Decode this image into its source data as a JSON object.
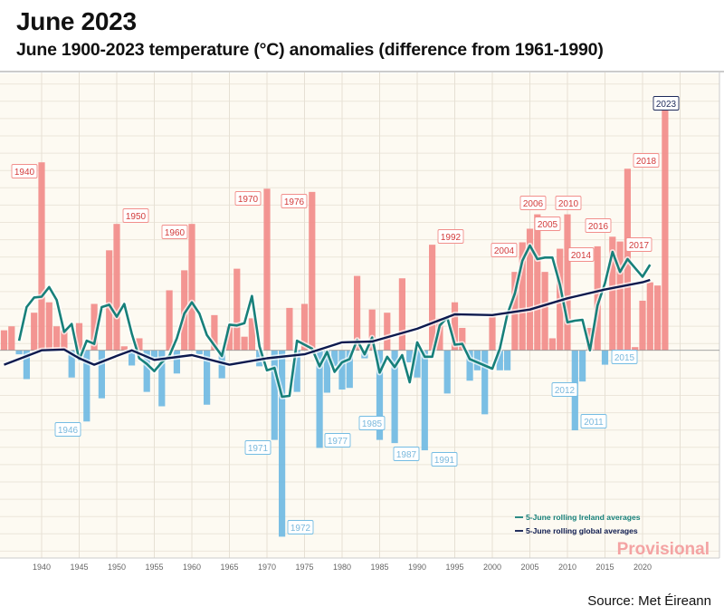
{
  "header": {
    "title": "June 2023",
    "subtitle": "June 1900-2023 temperature (°C) anomalies (difference from 1961-1990)"
  },
  "source": "Source: Met Éireann",
  "chart_data": {
    "type": "bar",
    "title": "June 2023",
    "subtitle": "June 1900-2023 temperature (°C) anomalies (difference from 1961-1990)",
    "xlabel": "",
    "ylabel": "",
    "xlim": [
      1934.5,
      2029.5
    ],
    "ylim": [
      -2.6,
      3.4
    ],
    "x_ticks": [
      "1940",
      "1945",
      "1950",
      "1955",
      "1960",
      "1965",
      "1970",
      "1975",
      "1980",
      "1985",
      "1990",
      "1995",
      "2000",
      "2005",
      "2010",
      "2015",
      "2020"
    ],
    "grid": true,
    "legend_position": "bottom-right",
    "colors": {
      "positive": "#f28f8c",
      "negative": "#74bce3",
      "ireland_line": "#17807a",
      "global_line": "#0d1a4e",
      "provisional": "#f4a3a3",
      "label_2023": "#1d2a5a"
    },
    "years": [
      1935,
      1936,
      1937,
      1938,
      1939,
      1940,
      1941,
      1942,
      1943,
      1944,
      1945,
      1946,
      1947,
      1948,
      1949,
      1950,
      1951,
      1952,
      1953,
      1954,
      1955,
      1956,
      1957,
      1958,
      1959,
      1960,
      1961,
      1962,
      1963,
      1964,
      1965,
      1966,
      1967,
      1968,
      1969,
      1970,
      1971,
      1972,
      1973,
      1974,
      1975,
      1976,
      1977,
      1978,
      1979,
      1980,
      1981,
      1982,
      1983,
      1984,
      1985,
      1986,
      1987,
      1988,
      1989,
      1990,
      1991,
      1992,
      1993,
      1994,
      1995,
      1996,
      1997,
      1998,
      1999,
      2000,
      2001,
      2002,
      2003,
      2004,
      2005,
      2006,
      2007,
      2008,
      2009,
      2010,
      2011,
      2012,
      2013,
      2014,
      2015,
      2016,
      2017,
      2018,
      2019,
      2020,
      2021,
      2022,
      2023
    ],
    "values": [
      0.25,
      0.3,
      -0.05,
      -0.36,
      0.47,
      2.35,
      0.6,
      0.3,
      0.25,
      -0.34,
      0.34,
      -0.89,
      0.58,
      -0.6,
      1.25,
      1.58,
      0.05,
      -0.19,
      0.15,
      -0.52,
      -0.1,
      -0.7,
      0.75,
      -0.29,
      1.0,
      1.58,
      -0.05,
      -0.68,
      0.44,
      -0.35,
      0.3,
      1.02,
      0.17,
      0.4,
      -0.2,
      2.02,
      -1.12,
      -2.33,
      0.53,
      -0.52,
      0.58,
      1.98,
      -1.22,
      -0.53,
      -0.2,
      -0.49,
      -0.47,
      0.93,
      -0.1,
      0.51,
      -1.12,
      0.47,
      -1.16,
      0.9,
      -0.15,
      -0.34,
      -1.25,
      1.32,
      0.4,
      -0.54,
      0.6,
      0.28,
      -0.38,
      -0.25,
      -0.8,
      0.42,
      -0.25,
      -0.25,
      0.98,
      1.35,
      1.52,
      1.7,
      0.98,
      0.15,
      1.27,
      1.7,
      -1.0,
      -0.39,
      0.28,
      1.3,
      -0.18,
      1.42,
      1.36,
      2.27,
      0.04,
      0.62,
      0.85,
      0.81,
      3.02
    ],
    "labelled_years": {
      "warm": [
        "1940",
        "1950",
        "1960",
        "1970",
        "1976",
        "1992",
        "2004",
        "2005",
        "2006",
        "2010",
        "2014",
        "2016",
        "2017",
        "2018"
      ],
      "cold": [
        "1946",
        "1971",
        "1972",
        "1977",
        "1985",
        "1987",
        "1991",
        "2011",
        "2012",
        "2015"
      ],
      "current": [
        "2023"
      ]
    },
    "series": [
      {
        "name": "5-June rolling Ireland averages",
        "x": [
          1937,
          1938,
          1939,
          1940,
          1941,
          1942,
          1943,
          1944,
          1945,
          1946,
          1947,
          1948,
          1949,
          1950,
          1951,
          1952,
          1953,
          1954,
          1955,
          1956,
          1957,
          1958,
          1959,
          1960,
          1961,
          1962,
          1963,
          1964,
          1965,
          1966,
          1967,
          1968,
          1969,
          1970,
          1971,
          1972,
          1973,
          1974,
          1975,
          1976,
          1977,
          1978,
          1979,
          1980,
          1981,
          1982,
          1983,
          1984,
          1985,
          1986,
          1987,
          1988,
          1989,
          1990,
          1991,
          1992,
          1993,
          1994,
          1995,
          1996,
          1997,
          1998,
          1999,
          2000,
          2001,
          2002,
          2003,
          2004,
          2005,
          2006,
          2007,
          2008,
          2009,
          2010,
          2011,
          2012,
          2013,
          2014,
          2015,
          2016,
          2017,
          2018,
          2019,
          2020,
          2021
        ],
        "values": [
          0.12,
          0.54,
          0.66,
          0.67,
          0.79,
          0.63,
          0.23,
          0.33,
          -0.12,
          0.12,
          0.08,
          0.54,
          0.57,
          0.42,
          0.58,
          0.21,
          -0.1,
          -0.17,
          -0.26,
          -0.15,
          -0.07,
          0.15,
          0.46,
          0.6,
          0.46,
          0.19,
          0.06,
          -0.07,
          0.32,
          0.31,
          0.34,
          0.68,
          0.05,
          -0.25,
          -0.22,
          -0.58,
          -0.57,
          0.12,
          0.07,
          0.02,
          -0.2,
          -0.02,
          -0.27,
          -0.15,
          -0.11,
          0.13,
          -0.05,
          0.16,
          -0.28,
          -0.08,
          -0.21,
          -0.06,
          -0.4,
          0.1,
          -0.08,
          -0.08,
          0.31,
          0.41,
          0.07,
          0.08,
          -0.11,
          -0.15,
          -0.19,
          -0.23,
          0.02,
          0.45,
          0.71,
          1.12,
          1.31,
          1.14,
          1.16,
          1.16,
          0.82,
          0.35,
          0.37,
          0.38,
          0.0,
          0.56,
          0.84,
          1.23,
          0.98,
          1.14,
          1.03,
          0.92,
          1.07
        ]
      },
      {
        "name": "5-June rolling global averages",
        "x": [
          1935,
          1940,
          1943,
          1945,
          1947,
          1950,
          1952,
          1955,
          1960,
          1965,
          1970,
          1975,
          1980,
          1984,
          1990,
          1995,
          2000,
          2005,
          2010,
          2015,
          2020,
          2021
        ],
        "values": [
          -0.18,
          0.0,
          0.01,
          -0.1,
          -0.18,
          -0.07,
          0.0,
          -0.12,
          -0.06,
          -0.18,
          -0.1,
          -0.05,
          0.1,
          0.11,
          0.27,
          0.45,
          0.44,
          0.51,
          0.65,
          0.76,
          0.85,
          0.88
        ]
      }
    ],
    "annotations": [
      "Provisional"
    ]
  }
}
